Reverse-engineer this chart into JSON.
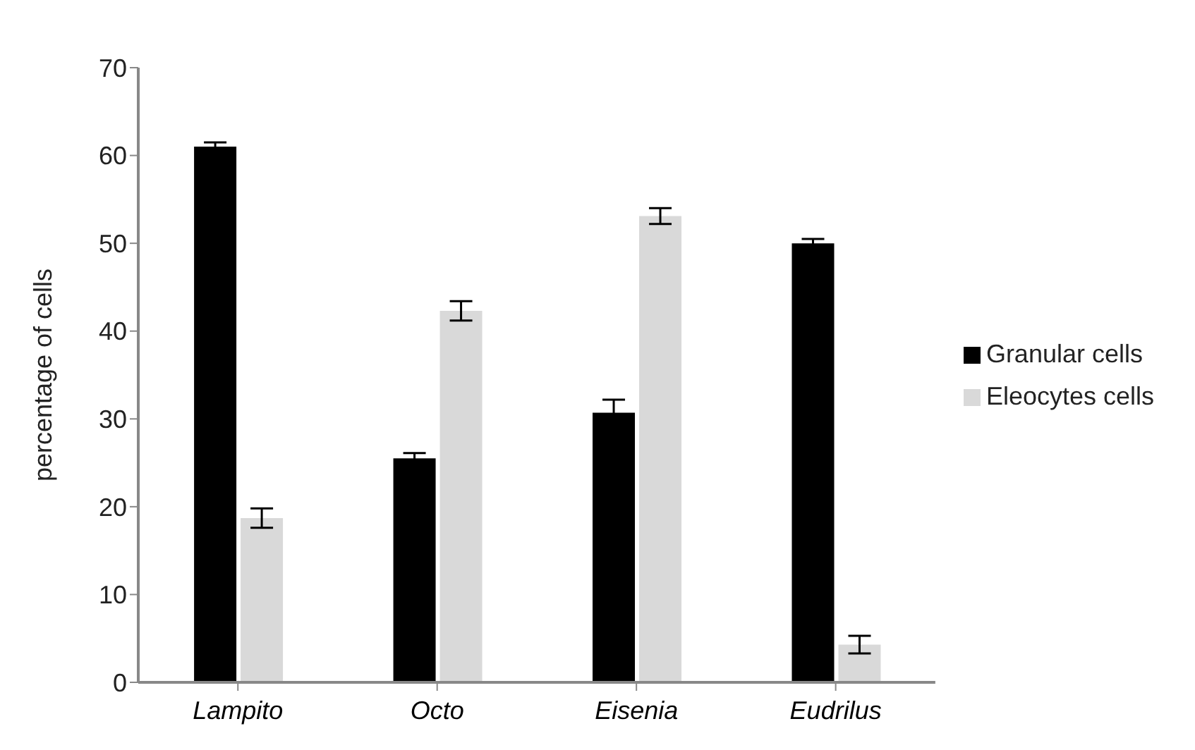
{
  "chart_data": {
    "type": "bar",
    "ylabel": "percentage of cells",
    "categories": [
      "Lampito",
      "Octo",
      "Eisenia",
      "Eudrilus"
    ],
    "series": [
      {
        "name": "Granular cells",
        "color": "#000000",
        "values": [
          61.0,
          25.5,
          30.7,
          50.0
        ],
        "errors": [
          0.5,
          0.6,
          1.5,
          0.5
        ]
      },
      {
        "name": "Eleocytes cells",
        "color": "#d9d9d9",
        "values": [
          18.7,
          42.3,
          53.1,
          4.3
        ],
        "errors": [
          1.1,
          1.1,
          0.9,
          1.0
        ]
      }
    ],
    "ylim": [
      0,
      70
    ],
    "yticks": [
      0,
      10,
      20,
      30,
      40,
      50,
      60,
      70
    ],
    "grid": false,
    "legend": "right"
  }
}
